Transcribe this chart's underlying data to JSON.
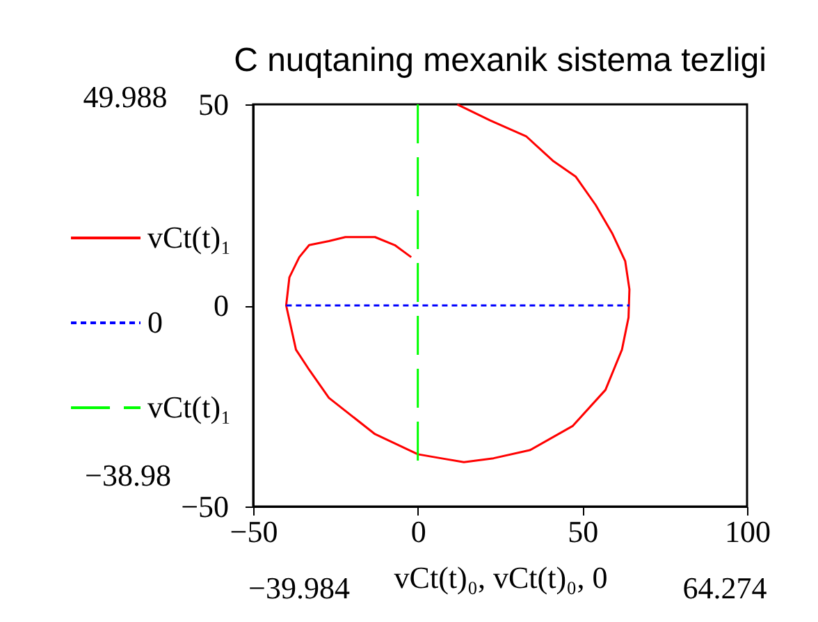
{
  "chart_data": {
    "type": "line",
    "title": "C nuqtaning mexanik sistema tezligi",
    "xlabel": "vCt(t)₀, vCt(t)₀, 0",
    "series": [
      {
        "name": "vCt(t)₁",
        "color": "#ff0000",
        "line_style": "solid",
        "x": [
          12,
          22,
          33,
          41,
          48,
          54,
          59,
          63,
          64.274,
          64,
          62,
          57,
          47,
          34,
          23,
          14,
          7,
          0,
          -13,
          -27,
          -33,
          -37,
          -39.984,
          -39,
          -36,
          -33,
          -27,
          -22,
          -13,
          -7,
          -2
        ],
        "values": [
          49.988,
          46,
          42,
          36,
          32,
          25,
          18,
          11,
          4,
          -3,
          -11,
          -21,
          -30,
          -36,
          -38,
          -38.98,
          -38,
          -37,
          -32,
          -23,
          -16,
          -11,
          0,
          7,
          12,
          15,
          16,
          17,
          17,
          15,
          12
        ]
      },
      {
        "name": "0",
        "color": "#0000ff",
        "line_style": "dotted",
        "x": [
          -39.984,
          64.274
        ],
        "values": [
          0,
          0
        ]
      },
      {
        "name": "vCt(t)₁",
        "color": "#00ff00",
        "line_style": "dashed",
        "x": [
          0,
          0
        ],
        "values": [
          49.988,
          -38.98
        ]
      }
    ],
    "xlim": [
      -50,
      100
    ],
    "xticks": [
      -50,
      0,
      50,
      100
    ],
    "ylim": [
      -50,
      50
    ],
    "yticks": [
      -50,
      0,
      50
    ],
    "legend": "left",
    "annotations": [
      "49.988",
      "−38.98",
      "−39.984",
      "64.274"
    ]
  }
}
